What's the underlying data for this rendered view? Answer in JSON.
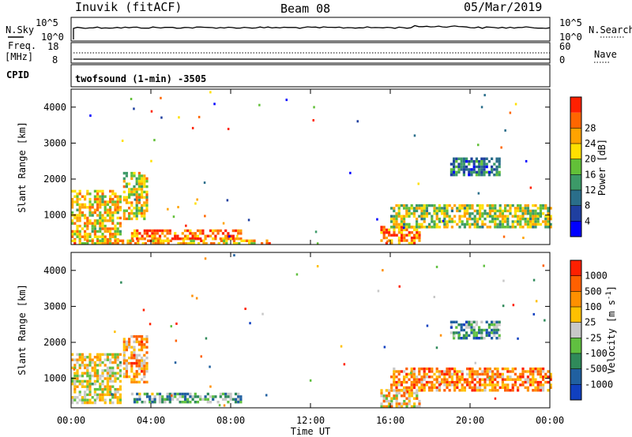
{
  "header": {
    "site": "Inuvik (fitACF)",
    "beam": "Beam 08",
    "date": "05/Mar/2019"
  },
  "top_panels": {
    "nsky_label": "N.Sky",
    "nsky_ticks": [
      "10^5",
      "10^0"
    ],
    "nsearch_label": "N.Search",
    "nsearch_ticks": [
      "10^5",
      "10^0"
    ],
    "freq_label": "Freq.",
    "freq_unit": "[MHz]",
    "freq_ticks": [
      "18",
      "8"
    ],
    "nave_label": "Nave",
    "nave_ticks": [
      "60",
      "0"
    ],
    "cpid_label": "CPID",
    "cpid_value": "twofsound (1-min) -3505"
  },
  "x_axis": {
    "title": "Time UT",
    "ticks": [
      "00:00",
      "04:00",
      "08:00",
      "12:00",
      "16:00",
      "20:00",
      "00:00"
    ]
  },
  "chart_data": [
    {
      "type": "heatmap",
      "name": "Power",
      "ylabel": "Slant Range [km]",
      "xlabel": "Time UT",
      "xlim": [
        0,
        24
      ],
      "ylim": [
        180,
        4500
      ],
      "yticks": [
        "1000",
        "2000",
        "3000",
        "4000"
      ],
      "colorbar_label": "Power [dB]",
      "colorbar_ticks": [
        "4",
        "8",
        "12",
        "16",
        "20",
        "24",
        "28"
      ],
      "colorbar_colors": [
        "#0000ff",
        "#1f3fa0",
        "#2a6e8a",
        "#3c9a68",
        "#62c038",
        "#ffe000",
        "#ffa300",
        "#ff6600",
        "#ff2000"
      ],
      "regions": [
        {
          "t": [
            0.0,
            2.5
          ],
          "r": [
            300,
            1700
          ],
          "level": 0.65
        },
        {
          "t": [
            2.6,
            3.8
          ],
          "r": [
            900,
            2200
          ],
          "level": 0.6
        },
        {
          "t": [
            3.0,
            8.5
          ],
          "r": [
            350,
            600
          ],
          "level": 0.85
        },
        {
          "t": [
            0.0,
            10.0
          ],
          "r": [
            200,
            320
          ],
          "level": 0.7
        },
        {
          "t": [
            15.5,
            17.5
          ],
          "r": [
            200,
            700
          ],
          "level": 0.8
        },
        {
          "t": [
            16.0,
            24.0
          ],
          "r": [
            700,
            1300
          ],
          "level": 0.55
        },
        {
          "t": [
            19.0,
            21.5
          ],
          "r": [
            2100,
            2600
          ],
          "level": 0.3
        }
      ]
    },
    {
      "type": "heatmap",
      "name": "Velocity",
      "ylabel": "Slant Range [km]",
      "xlabel": "Time UT",
      "xlim": [
        0,
        24
      ],
      "ylim": [
        180,
        4500
      ],
      "yticks": [
        "1000",
        "2000",
        "3000",
        "4000"
      ],
      "colorbar_label": "Velocity [m s^-1]",
      "colorbar_ticks": [
        "1000",
        "500",
        "100",
        "25",
        "-25",
        "-100",
        "-500",
        "-1000"
      ],
      "colorbar_colors": [
        "#1040c0",
        "#2060a0",
        "#2f8a5a",
        "#60c040",
        "#c8c8c8",
        "#ffc000",
        "#ff9000",
        "#ff6000",
        "#ff2000"
      ],
      "regions": [
        {
          "t": [
            0.0,
            2.5
          ],
          "r": [
            300,
            1700
          ],
          "level": 0.55
        },
        {
          "t": [
            2.6,
            3.8
          ],
          "r": [
            900,
            2200
          ],
          "level": 0.7
        },
        {
          "t": [
            3.0,
            8.5
          ],
          "r": [
            350,
            600
          ],
          "level": 0.35
        },
        {
          "t": [
            16.0,
            24.0
          ],
          "r": [
            700,
            1300
          ],
          "level": 0.75
        },
        {
          "t": [
            15.5,
            17.5
          ],
          "r": [
            200,
            700
          ],
          "level": 0.6
        },
        {
          "t": [
            19.0,
            21.5
          ],
          "r": [
            2100,
            2600
          ],
          "level": 0.3
        }
      ]
    }
  ]
}
